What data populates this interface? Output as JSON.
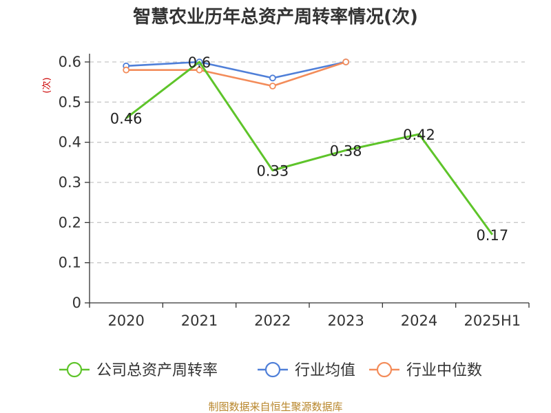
{
  "chart_data": {
    "type": "line",
    "title": "智慧农业历年总资产周转率情况(次)",
    "ylabel": "(次)",
    "xlabel": "",
    "categories": [
      "2020",
      "2021",
      "2022",
      "2023",
      "2024",
      "2025H1"
    ],
    "ylim": [
      0,
      0.6
    ],
    "yticks": [
      "0",
      "0.1",
      "0.2",
      "0.3",
      "0.4",
      "0.5",
      "0.6"
    ],
    "grid": true,
    "legend_position": "bottom",
    "series": [
      {
        "name": "公司总资产周转率",
        "color": "#5ec42a",
        "values": [
          0.46,
          0.6,
          0.33,
          0.38,
          0.42,
          0.17
        ],
        "labels": [
          "0.46",
          "0.6",
          "0.33",
          "0.38",
          "0.42",
          "0.17"
        ]
      },
      {
        "name": "行业均值",
        "color": "#4f7fd8",
        "values": [
          0.59,
          0.6,
          0.56,
          0.6,
          null,
          null
        ]
      },
      {
        "name": "行业中位数",
        "color": "#f38c5a",
        "values": [
          0.58,
          0.58,
          0.54,
          0.6,
          null,
          null
        ]
      }
    ],
    "source": "制图数据来自恒生聚源数据库"
  }
}
